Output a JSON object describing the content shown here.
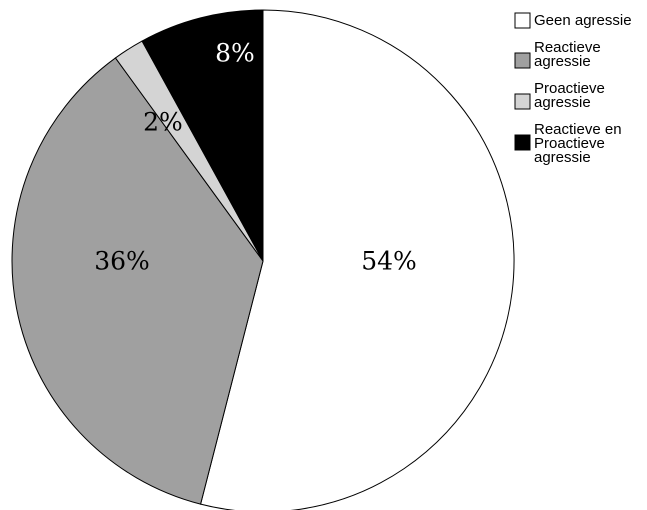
{
  "chart_data": {
    "type": "pie",
    "title": "",
    "slices": [
      {
        "name": "Geen agressie",
        "name_lines": [
          "Geen agressie"
        ],
        "value": 54,
        "label": "54%",
        "color": "#ffffff",
        "label_color": "#000000"
      },
      {
        "name": "Reactieve agressie",
        "name_lines": [
          "Reactieve",
          "agressie"
        ],
        "value": 36,
        "label": "36%",
        "color": "#a0a0a0",
        "label_color": "#000000"
      },
      {
        "name": "Proactieve agressie",
        "name_lines": [
          "Proactieve",
          "agressie"
        ],
        "value": 2,
        "label": "2%",
        "color": "#d4d4d4",
        "label_color": "#000000"
      },
      {
        "name": "Reactieve en Proactieve agressie",
        "name_lines": [
          "Reactieve en",
          "Proactieve",
          "agressie"
        ],
        "value": 8,
        "label": "8%",
        "color": "#000000",
        "label_color": "#ffffff"
      }
    ],
    "legend_position": "top-right"
  }
}
